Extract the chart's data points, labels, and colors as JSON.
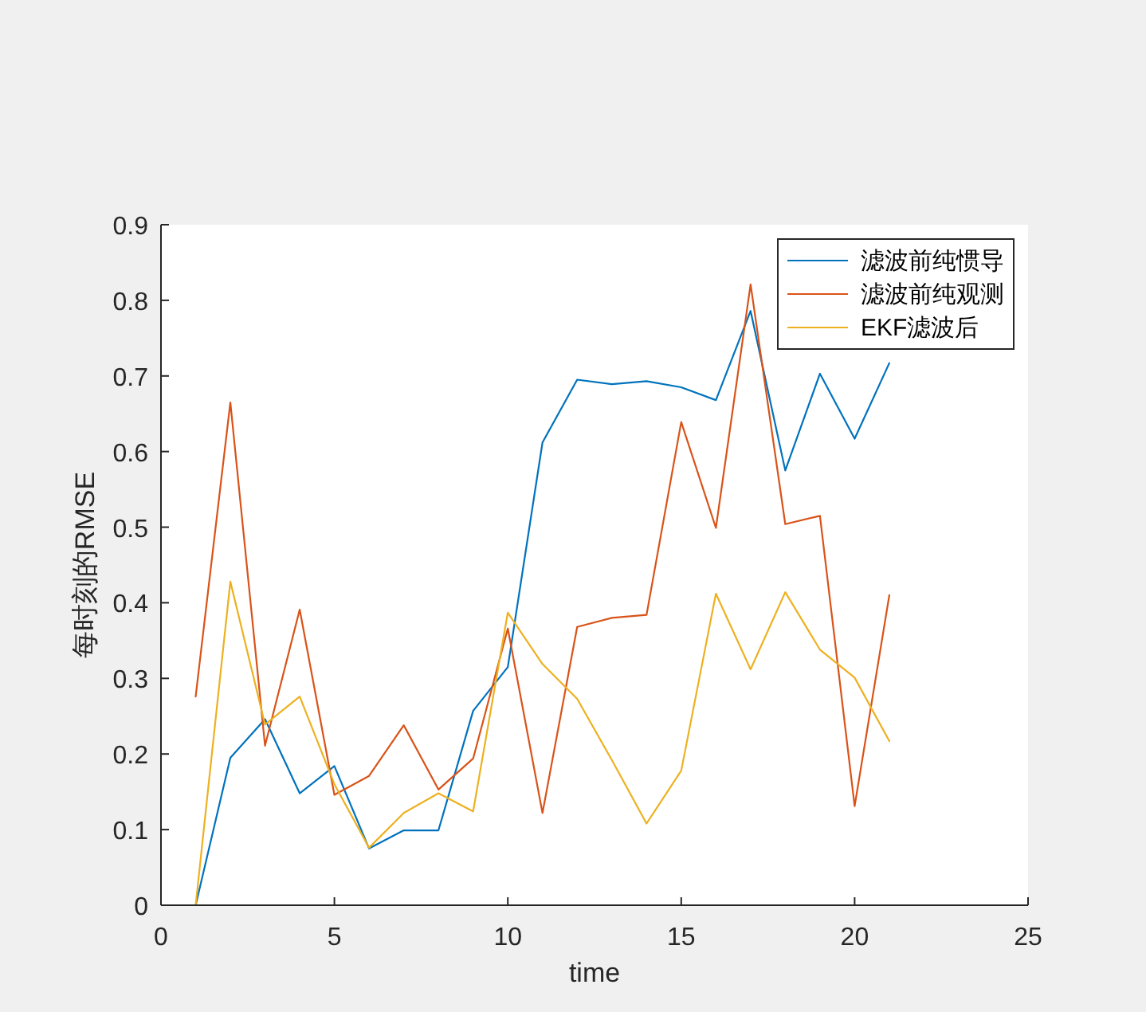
{
  "chart_data": {
    "type": "line",
    "x": [
      1,
      2,
      3,
      4,
      5,
      6,
      7,
      8,
      9,
      10,
      11,
      12,
      13,
      14,
      15,
      16,
      17,
      18,
      19,
      20,
      21
    ],
    "series": [
      {
        "name": "滤波前纯惯导",
        "color": "#0072bd",
        "values": [
          0.0,
          0.195,
          0.246,
          0.148,
          0.184,
          0.075,
          0.099,
          0.099,
          0.257,
          0.315,
          0.612,
          0.695,
          0.689,
          0.693,
          0.685,
          0.668,
          0.786,
          0.575,
          0.703,
          0.617,
          0.717
        ]
      },
      {
        "name": "滤波前纯观测",
        "color": "#d95319",
        "values": [
          0.276,
          0.665,
          0.211,
          0.391,
          0.146,
          0.171,
          0.238,
          0.153,
          0.194,
          0.366,
          0.122,
          0.368,
          0.38,
          0.384,
          0.639,
          0.499,
          0.821,
          0.504,
          0.515,
          0.131,
          0.41
        ]
      },
      {
        "name": "EKF滤波后",
        "color": "#edb120",
        "values": [
          0.0,
          0.428,
          0.239,
          0.276,
          0.16,
          0.076,
          0.122,
          0.148,
          0.124,
          0.387,
          0.319,
          0.273,
          0.192,
          0.108,
          0.178,
          0.412,
          0.312,
          0.414,
          0.338,
          0.301,
          0.217
        ]
      }
    ],
    "xlabel": "time",
    "ylabel": "每时刻的RMSE",
    "xlim": [
      0,
      25
    ],
    "xticks": [
      0,
      5,
      10,
      15,
      20,
      25
    ],
    "ylim": [
      0,
      0.9
    ],
    "yticks": [
      0,
      0.1,
      0.2,
      0.3,
      0.4,
      0.5,
      0.6,
      0.7,
      0.8,
      0.9
    ],
    "legend": "top right",
    "grid": false,
    "marker": "none",
    "line_style": "solid"
  }
}
